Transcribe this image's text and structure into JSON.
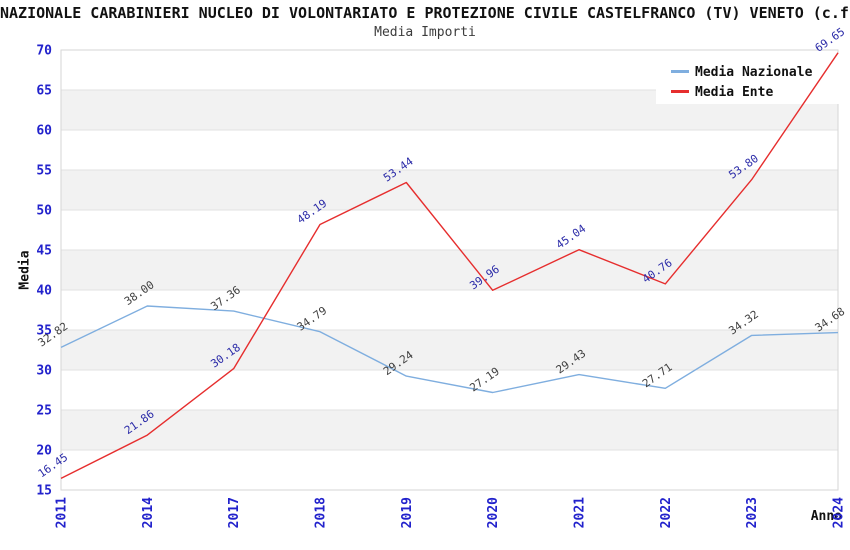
{
  "header": {
    "title": "NAZIONALE CARABINIERI NUCLEO DI VOLONTARIATO E PROTEZIONE CIVILE CASTELFRANCO (TV) VENETO (c.f",
    "subtitle": "Media Importi"
  },
  "chart_data": {
    "type": "line",
    "categories": [
      "2011",
      "2014",
      "2017",
      "2018",
      "2019",
      "2020",
      "2021",
      "2022",
      "2023",
      "2024"
    ],
    "series": [
      {
        "name": "Media Nazionale",
        "color": "#7FAEDF",
        "label_color": "#3F3F3F",
        "values": [
          32.82,
          38.0,
          37.36,
          34.79,
          29.24,
          27.19,
          29.43,
          27.71,
          34.32,
          34.68
        ]
      },
      {
        "name": "Media Ente",
        "color": "#E62E2E",
        "label_color": "#2B2BA8",
        "values": [
          16.45,
          21.86,
          30.18,
          48.19,
          53.44,
          39.96,
          45.04,
          40.76,
          53.8,
          69.65
        ]
      }
    ],
    "title": "Media Importi",
    "xlabel": "Anno",
    "ylabel": "Media",
    "ylim": [
      15,
      70
    ],
    "ytick_step": 5,
    "grid": "banded-horizontal",
    "legend_position": "top-right"
  },
  "style": {
    "tick_color": "#2222CC",
    "band_color": "#F2F2F2",
    "grid_line_color": "#E2E2E2",
    "frame_color": "#D6D6D6",
    "legend_bg": "#FFFFFF"
  }
}
